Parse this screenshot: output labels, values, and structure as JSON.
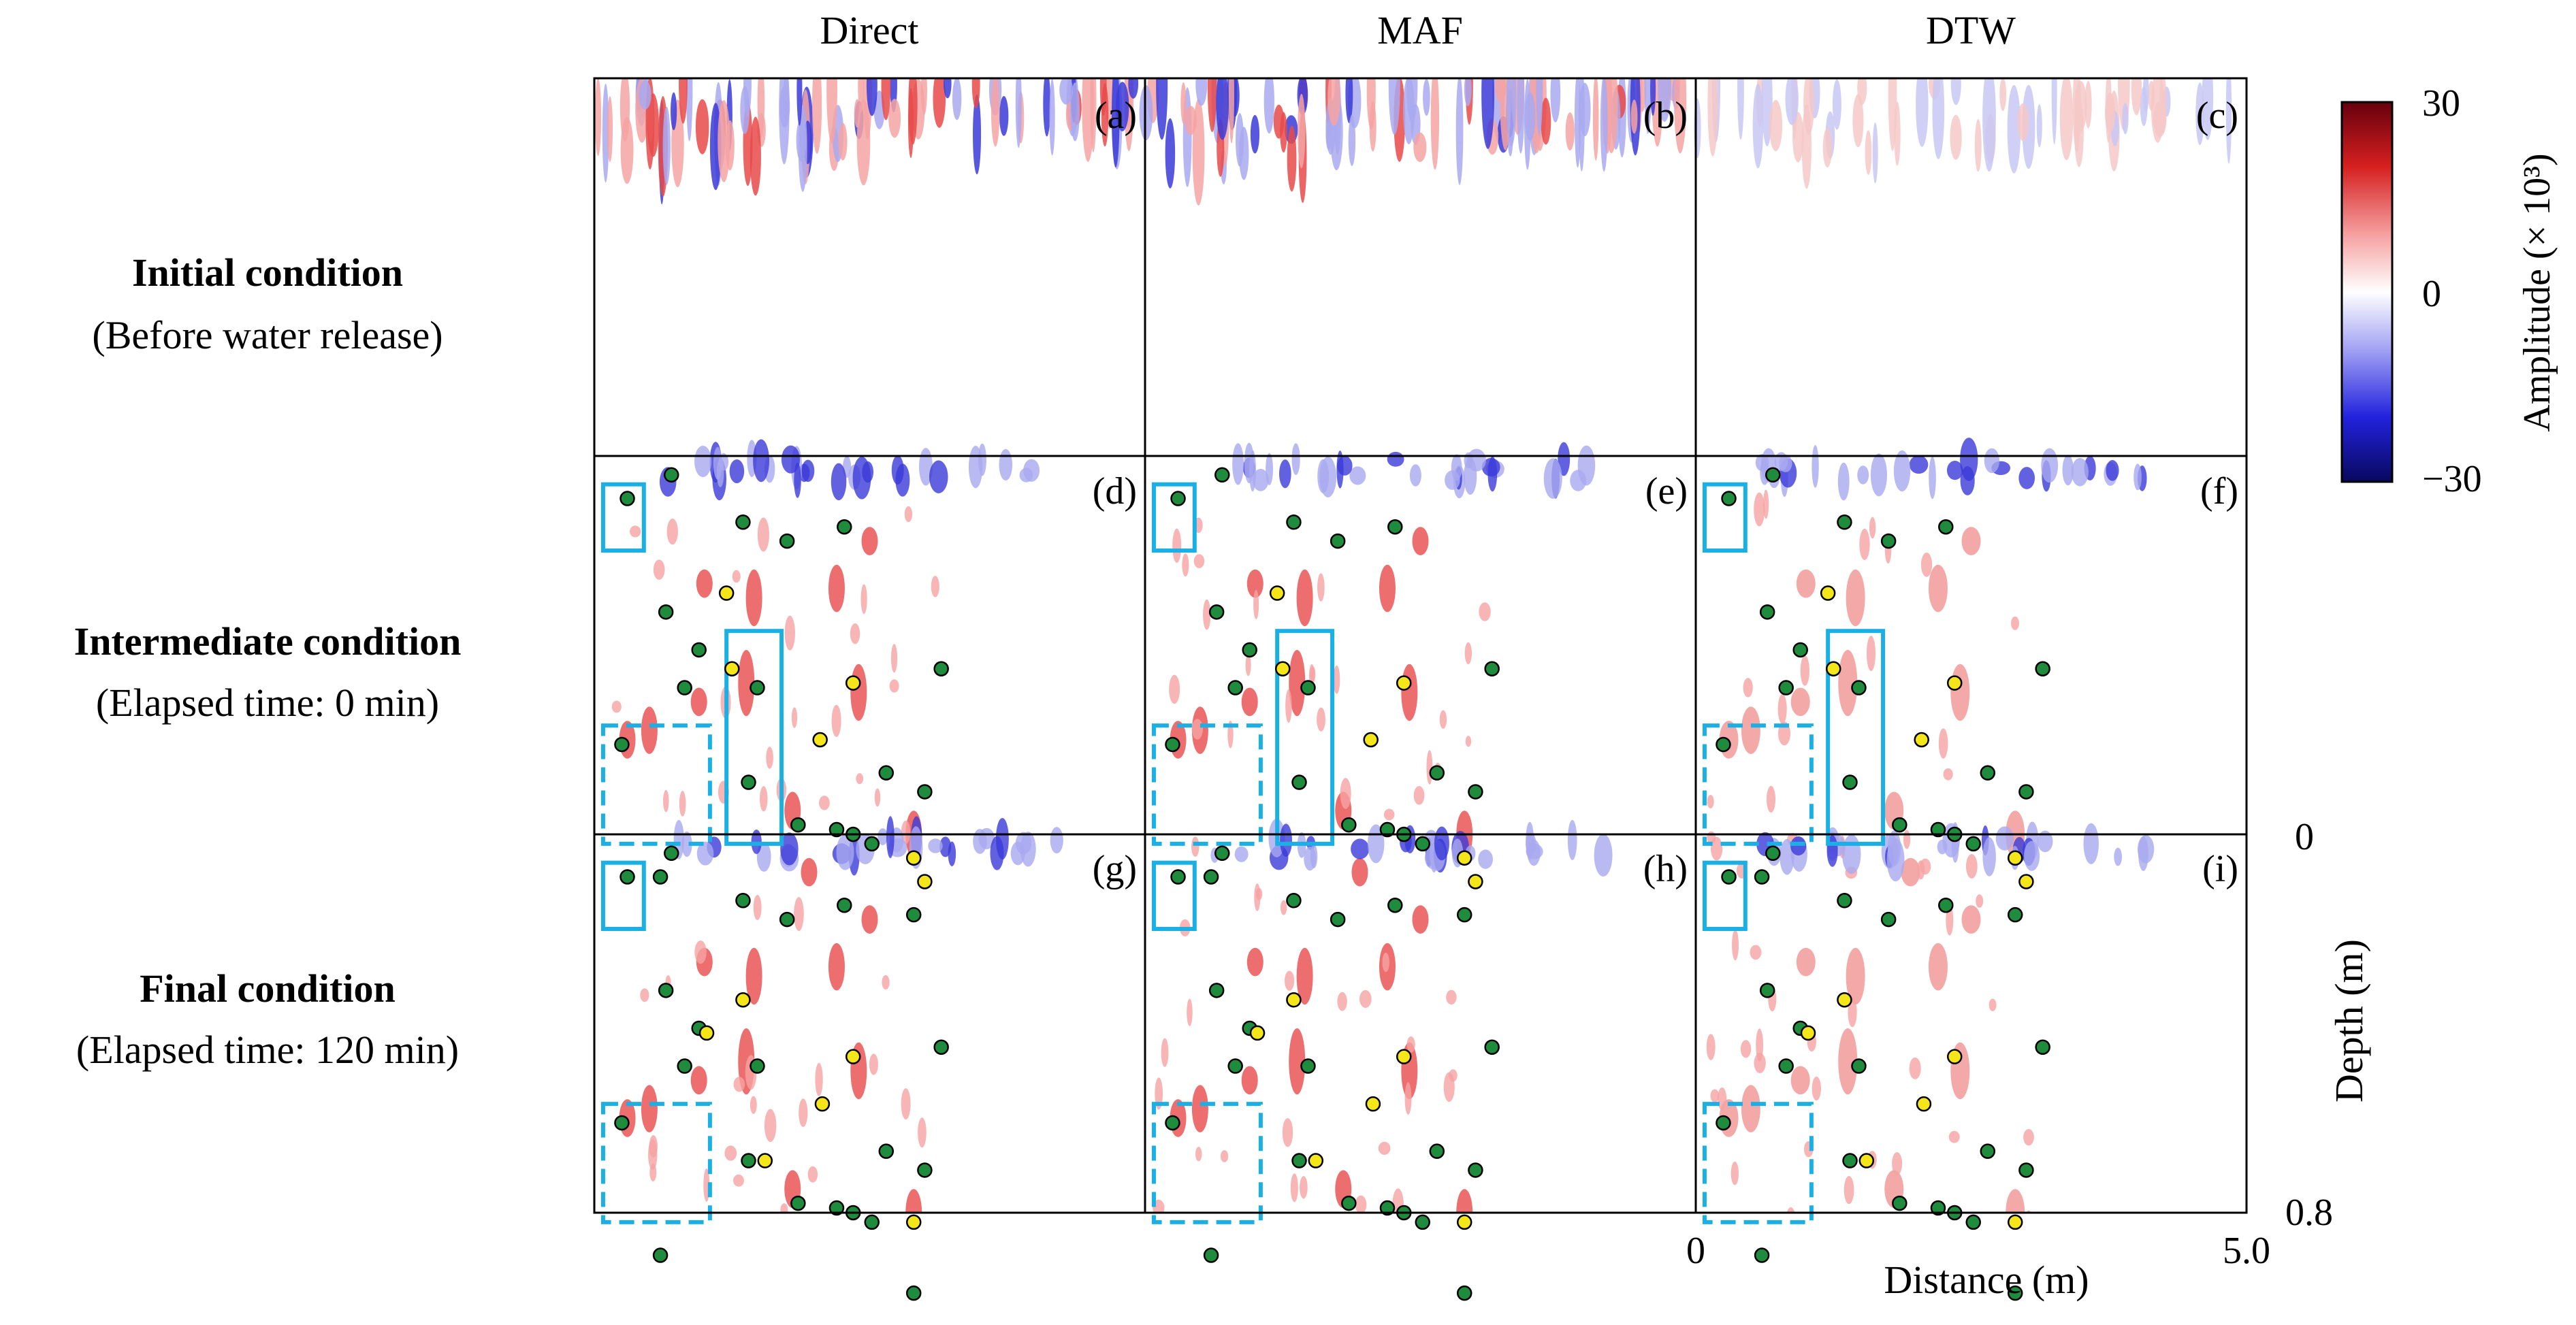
{
  "columns": [
    "Direct",
    "MAF",
    "DTW"
  ],
  "rows": [
    {
      "title": "Initial condition",
      "subtitle": "(Before water release)"
    },
    {
      "title": "Intermediate condition",
      "subtitle": "(Elapsed time: 0 min)"
    },
    {
      "title": "Final condition",
      "subtitle": "(Elapsed time: 120 min)"
    }
  ],
  "panel_labels": [
    "(a)",
    "(b)",
    "(c)",
    "(d)",
    "(e)",
    "(f)",
    "(g)",
    "(h)",
    "(i)"
  ],
  "colorbar": {
    "label": "Amplitude (× 10³)",
    "ticks": [
      "30",
      "0",
      "−30"
    ],
    "max_color": "#67000d",
    "mid_color": "#ffffff",
    "min_color": "#08085e"
  },
  "axes": {
    "xlabel": "Distance (m)",
    "ylabel": "Depth (m)",
    "x_ticks": [
      "0",
      "5.0"
    ],
    "y_ticks": [
      "0",
      "0.8"
    ],
    "xlim": [
      0,
      5.0
    ],
    "ylim": [
      0,
      0.8
    ]
  },
  "marker_colors": {
    "green": "#1e8c3c",
    "yellow": "#f5e61a",
    "box": "#1ab0e6"
  },
  "chart_data": {
    "type": "heatmap",
    "title": "",
    "columns": [
      "Direct",
      "MAF",
      "DTW"
    ],
    "rows": [
      "Initial condition",
      "Intermediate condition",
      "Final condition"
    ],
    "xlabel": "Distance (m)",
    "ylabel": "Depth (m)",
    "xlim": [
      0,
      5.0
    ],
    "ylim": [
      0,
      0.8
    ],
    "colorbar": {
      "label": "Amplitude (× 10³)",
      "range": [
        -30,
        30
      ]
    },
    "objects": {
      "green": [
        [
          0.3,
          0.09
        ],
        [
          0.7,
          0.04
        ],
        [
          0.95,
          0.41
        ],
        [
          1.35,
          0.14
        ],
        [
          1.75,
          0.18
        ],
        [
          2.27,
          0.15
        ],
        [
          0.65,
          0.33
        ],
        [
          0.82,
          0.49
        ],
        [
          1.48,
          0.49
        ],
        [
          0.25,
          0.61
        ],
        [
          1.4,
          0.69
        ],
        [
          3.15,
          0.45
        ],
        [
          2.2,
          0.79
        ],
        [
          2.35,
          0.8
        ],
        [
          2.65,
          0.67
        ],
        [
          1.85,
          0.78
        ],
        [
          2.52,
          0.82
        ],
        [
          0.6,
          0.89
        ],
        [
          2.9,
          0.97
        ],
        [
          3.0,
          0.71
        ]
      ],
      "yellow_intermediate": [
        [
          1.2,
          0.29
        ],
        [
          1.25,
          0.45
        ],
        [
          2.35,
          0.48
        ],
        [
          2.05,
          0.6
        ],
        [
          2.9,
          0.85
        ],
        [
          3.0,
          0.9
        ]
      ],
      "yellow_final": [
        [
          1.35,
          0.35
        ],
        [
          1.02,
          0.42
        ],
        [
          2.35,
          0.47
        ],
        [
          2.07,
          0.57
        ],
        [
          2.9,
          0.82
        ],
        [
          1.55,
          0.69
        ]
      ],
      "solid_boxes_intermediate": [
        [
          0.08,
          0.06,
          0.45,
          0.2
        ],
        [
          1.2,
          0.37,
          1.7,
          0.82
        ]
      ],
      "dashed_boxes": [
        [
          0.08,
          0.57,
          1.05,
          0.82
        ]
      ],
      "solid_boxes_final": [
        [
          0.08,
          0.06,
          0.45,
          0.2
        ]
      ]
    }
  }
}
